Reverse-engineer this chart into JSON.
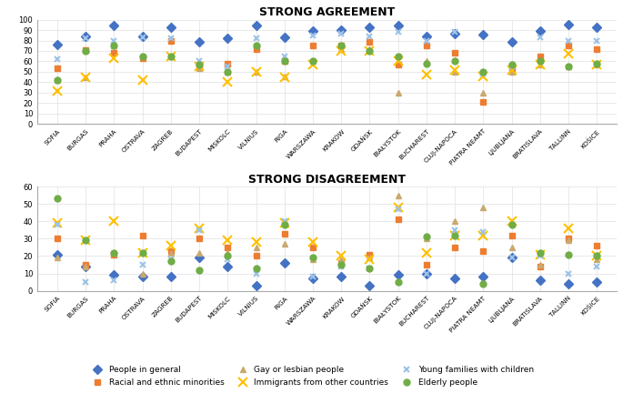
{
  "cities": [
    "SOFIA",
    "BURGAS",
    "PRAHA",
    "OSTRAVA",
    "ZAGREB",
    "BUDAPEST",
    "MISKOLC",
    "VILNIUS",
    "RIGA",
    "WARSZAWA",
    "KRAKÓW",
    "GDAŃSK",
    "BIAŁYSTOK",
    "BUCHAREST",
    "CLUJ-NAPOCA",
    "PIATRA NEAMT",
    "LJUBLJANA",
    "BRATISLAVA",
    "TALLINN",
    "KOŠICE"
  ],
  "agreement": {
    "people_general": [
      76,
      84,
      94,
      84,
      93,
      79,
      82,
      94,
      83,
      89,
      90,
      93,
      94,
      84,
      87,
      86,
      79,
      89,
      95,
      93
    ],
    "racial_ethnic": [
      53,
      71,
      68,
      63,
      80,
      55,
      58,
      72,
      60,
      75,
      75,
      79,
      57,
      75,
      68,
      21,
      53,
      65,
      75,
      72
    ],
    "gay_lesbian": [
      42,
      45,
      75,
      65,
      65,
      53,
      50,
      50,
      46,
      60,
      72,
      72,
      30,
      60,
      50,
      30,
      50,
      57,
      55,
      57
    ],
    "immigrants": [
      32,
      45,
      63,
      42,
      65,
      55,
      40,
      50,
      45,
      57,
      70,
      70,
      60,
      47,
      52,
      46,
      52,
      57,
      67,
      57
    ],
    "young_families": [
      62,
      82,
      80,
      83,
      82,
      60,
      55,
      82,
      65,
      85,
      87,
      84,
      88,
      80,
      88,
      48,
      55,
      83,
      80,
      80
    ],
    "elderly": [
      42,
      70,
      75,
      65,
      65,
      57,
      50,
      75,
      60,
      60,
      75,
      70,
      65,
      58,
      60,
      50,
      57,
      60,
      55,
      58
    ]
  },
  "disagreement": {
    "people_general": [
      21,
      14,
      9,
      8,
      8,
      19,
      14,
      3,
      16,
      7,
      8,
      3,
      9,
      10,
      7,
      8,
      19,
      6,
      4,
      5
    ],
    "racial_ethnic": [
      30,
      15,
      21,
      32,
      23,
      30,
      25,
      20,
      33,
      25,
      16,
      21,
      41,
      15,
      25,
      23,
      32,
      14,
      30,
      26
    ],
    "gay_lesbian": [
      19,
      14,
      22,
      10,
      22,
      22,
      22,
      25,
      27,
      18,
      18,
      19,
      55,
      30,
      40,
      48,
      25,
      15,
      29,
      18
    ],
    "immigrants": [
      39,
      29,
      40,
      22,
      26,
      36,
      29,
      28,
      39,
      28,
      20,
      18,
      48,
      22,
      32,
      32,
      40,
      21,
      36,
      20
    ],
    "young_families": [
      38,
      5,
      6,
      15,
      18,
      35,
      18,
      10,
      40,
      8,
      14,
      13,
      47,
      10,
      35,
      34,
      19,
      20,
      10,
      14
    ],
    "elderly": [
      53,
      29,
      22,
      22,
      17,
      12,
      20,
      13,
      38,
      19,
      15,
      13,
      5,
      31,
      32,
      4,
      38,
      22,
      21,
      20
    ]
  },
  "series": [
    "people_general",
    "racial_ethnic",
    "gay_lesbian",
    "immigrants",
    "young_families",
    "elderly"
  ],
  "labels": [
    "People in general",
    "Racial and ethnic minorities",
    "Gay or lesbian people",
    "Immigrants from other countries",
    "Young families with children",
    "Elderly people"
  ],
  "colors": [
    "#4472C4",
    "#ED7D31",
    "#C9A96E",
    "#FFC000",
    "#9DC3E6",
    "#70AD47"
  ],
  "markers": [
    "D",
    "s",
    "^",
    "x",
    "x",
    "o"
  ],
  "markersizes": [
    5,
    5,
    5,
    7,
    5,
    5
  ],
  "title_agreement": "STRONG AGREEMENT",
  "title_disagreement": "STRONG DISAGREEMENT",
  "ylim_agreement": [
    0,
    100
  ],
  "ylim_disagreement": [
    0,
    60
  ],
  "yticks_agreement": [
    0,
    10,
    20,
    30,
    40,
    50,
    60,
    70,
    80,
    90,
    100
  ],
  "yticks_disagreement": [
    0,
    10,
    20,
    30,
    40,
    50,
    60
  ]
}
